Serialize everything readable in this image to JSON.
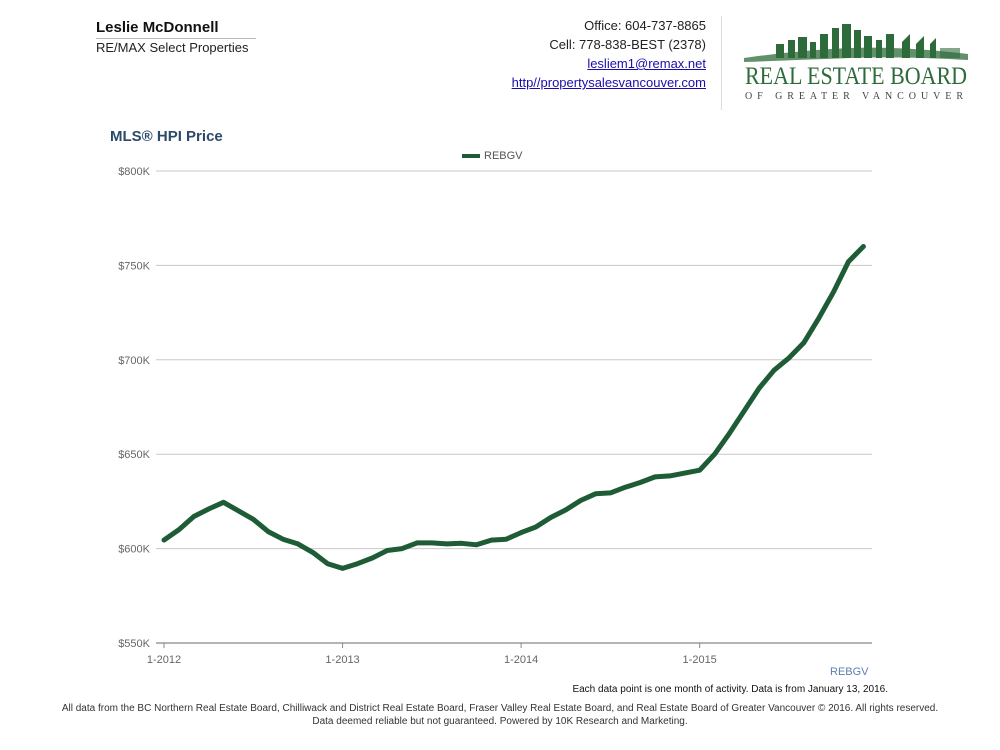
{
  "header": {
    "agent_name": "Leslie McDonnell",
    "company": "RE/MAX Select Properties",
    "office": "Office: 604-737-8865",
    "cell": "Cell: 778-838-BEST (2378)",
    "email": "lesliem1@remax.net",
    "website": "http//propertysalesvancouver.com"
  },
  "logo": {
    "line1": "REAL ESTATE BOARD",
    "line2": "OF GREATER VANCOUVER",
    "color": "#2e6b3a"
  },
  "chart_data": {
    "type": "line",
    "title": "MLS® HPI Price",
    "legend": [
      "REBGV"
    ],
    "legend_position": "top-center",
    "grid": true,
    "line_color": "#1e5c36",
    "ylim": [
      550000,
      800000
    ],
    "ytick_values": [
      550000,
      600000,
      650000,
      700000,
      750000,
      800000
    ],
    "ytick_labels": [
      "$550K",
      "$600K",
      "$650K",
      "$700K",
      "$750K",
      "$800K"
    ],
    "xtick_labels": [
      "1-2012",
      "1-2013",
      "1-2014",
      "1-2015"
    ],
    "x": [
      "1-2012",
      "2-2012",
      "3-2012",
      "4-2012",
      "5-2012",
      "6-2012",
      "7-2012",
      "8-2012",
      "9-2012",
      "10-2012",
      "11-2012",
      "12-2012",
      "1-2013",
      "2-2013",
      "3-2013",
      "4-2013",
      "5-2013",
      "6-2013",
      "7-2013",
      "8-2013",
      "9-2013",
      "10-2013",
      "11-2013",
      "12-2013",
      "1-2014",
      "2-2014",
      "3-2014",
      "4-2014",
      "5-2014",
      "6-2014",
      "7-2014",
      "8-2014",
      "9-2014",
      "10-2014",
      "11-2014",
      "12-2014",
      "1-2015",
      "2-2015",
      "3-2015",
      "4-2015",
      "5-2015",
      "6-2015",
      "7-2015",
      "8-2015",
      "9-2015",
      "10-2015",
      "11-2015",
      "12-2015"
    ],
    "series": [
      {
        "name": "REBGV",
        "values": [
          604500,
          610000,
          617000,
          621000,
          624500,
          620000,
          615500,
          609000,
          605000,
          602500,
          598000,
          592000,
          589500,
          592000,
          595000,
          599000,
          600000,
          603000,
          603000,
          602500,
          602800,
          602000,
          604500,
          605000,
          608500,
          611500,
          616500,
          620500,
          625500,
          629000,
          629500,
          632500,
          635000,
          638000,
          638500,
          640000,
          641500,
          650000,
          661000,
          673000,
          685000,
          694500,
          701000,
          709000,
          722000,
          736000,
          752000,
          760000
        ]
      }
    ]
  },
  "brand_label": "REBGV",
  "note": "Each data point is one month of activity. Data is from January 13, 2016.",
  "footer": {
    "line1": "All data from the BC Northern Real Estate Board, Chilliwack and District Real Estate Board, Fraser Valley Real Estate Board, and Real Estate Board of Greater Vancouver © 2016. All rights reserved.",
    "line2": "Data deemed reliable but not guaranteed. Powered by 10K Research and Marketing."
  }
}
